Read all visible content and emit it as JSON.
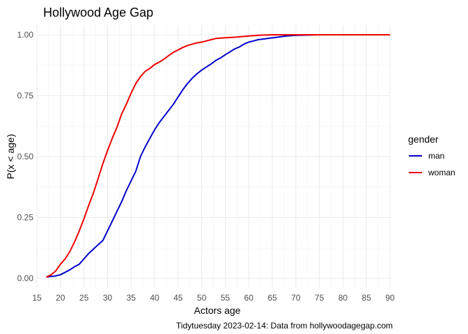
{
  "chart_data": {
    "type": "line",
    "title": "Hollywood Age Gap",
    "xlabel": "Actors age",
    "ylabel": "P(x < age)",
    "caption": "Tidytuesday 2023-02-14: Data from hollywoodagegap.com",
    "xlim": [
      15,
      90
    ],
    "ylim": [
      0,
      1
    ],
    "x_ticks": [
      "15",
      "20",
      "25",
      "30",
      "35",
      "40",
      "45",
      "50",
      "55",
      "60",
      "65",
      "70",
      "75",
      "80",
      "85",
      "90"
    ],
    "y_ticks": [
      "0.00",
      "0.25",
      "0.50",
      "0.75",
      "1.00"
    ],
    "grid": true,
    "legend": {
      "title": "gender",
      "position": "right"
    },
    "series": [
      {
        "name": "man",
        "color": "#0000cc",
        "points": [
          [
            17,
            0.005
          ],
          [
            18,
            0.008
          ],
          [
            19,
            0.01
          ],
          [
            20,
            0.015
          ],
          [
            21,
            0.025
          ],
          [
            22,
            0.035
          ],
          [
            23,
            0.048
          ],
          [
            24,
            0.058
          ],
          [
            25,
            0.08
          ],
          [
            26,
            0.102
          ],
          [
            27,
            0.12
          ],
          [
            28,
            0.138
          ],
          [
            29,
            0.155
          ],
          [
            30,
            0.195
          ],
          [
            31,
            0.235
          ],
          [
            32,
            0.275
          ],
          [
            33,
            0.315
          ],
          [
            34,
            0.36
          ],
          [
            35,
            0.4
          ],
          [
            36,
            0.44
          ],
          [
            37,
            0.5
          ],
          [
            38,
            0.54
          ],
          [
            39,
            0.575
          ],
          [
            40,
            0.61
          ],
          [
            41,
            0.64
          ],
          [
            42,
            0.665
          ],
          [
            43,
            0.69
          ],
          [
            44,
            0.715
          ],
          [
            45,
            0.745
          ],
          [
            46,
            0.775
          ],
          [
            47,
            0.8
          ],
          [
            48,
            0.822
          ],
          [
            49,
            0.84
          ],
          [
            50,
            0.855
          ],
          [
            51,
            0.868
          ],
          [
            52,
            0.88
          ],
          [
            53,
            0.895
          ],
          [
            54,
            0.905
          ],
          [
            55,
            0.918
          ],
          [
            56,
            0.93
          ],
          [
            57,
            0.942
          ],
          [
            58,
            0.95
          ],
          [
            59,
            0.962
          ],
          [
            60,
            0.97
          ],
          [
            61,
            0.975
          ],
          [
            62,
            0.98
          ],
          [
            64,
            0.985
          ],
          [
            66,
            0.99
          ],
          [
            68,
            0.995
          ],
          [
            70,
            0.998
          ],
          [
            75,
            1.0
          ],
          [
            90,
            1.0
          ]
        ]
      },
      {
        "name": "woman",
        "color": "#ee0000",
        "points": [
          [
            17,
            0.005
          ],
          [
            18,
            0.015
          ],
          [
            19,
            0.03
          ],
          [
            20,
            0.058
          ],
          [
            21,
            0.08
          ],
          [
            22,
            0.11
          ],
          [
            23,
            0.15
          ],
          [
            24,
            0.195
          ],
          [
            25,
            0.245
          ],
          [
            26,
            0.3
          ],
          [
            27,
            0.35
          ],
          [
            28,
            0.41
          ],
          [
            29,
            0.47
          ],
          [
            30,
            0.525
          ],
          [
            31,
            0.575
          ],
          [
            32,
            0.62
          ],
          [
            33,
            0.675
          ],
          [
            34,
            0.715
          ],
          [
            35,
            0.76
          ],
          [
            36,
            0.8
          ],
          [
            37,
            0.828
          ],
          [
            38,
            0.85
          ],
          [
            39,
            0.862
          ],
          [
            40,
            0.878
          ],
          [
            41,
            0.888
          ],
          [
            42,
            0.9
          ],
          [
            43,
            0.915
          ],
          [
            44,
            0.928
          ],
          [
            45,
            0.938
          ],
          [
            46,
            0.948
          ],
          [
            47,
            0.956
          ],
          [
            48,
            0.962
          ],
          [
            49,
            0.967
          ],
          [
            50,
            0.97
          ],
          [
            51,
            0.975
          ],
          [
            52,
            0.98
          ],
          [
            53,
            0.985
          ],
          [
            55,
            0.988
          ],
          [
            57,
            0.99
          ],
          [
            60,
            0.995
          ],
          [
            62,
            0.998
          ],
          [
            65,
            1.0
          ],
          [
            90,
            1.0
          ]
        ]
      }
    ]
  }
}
